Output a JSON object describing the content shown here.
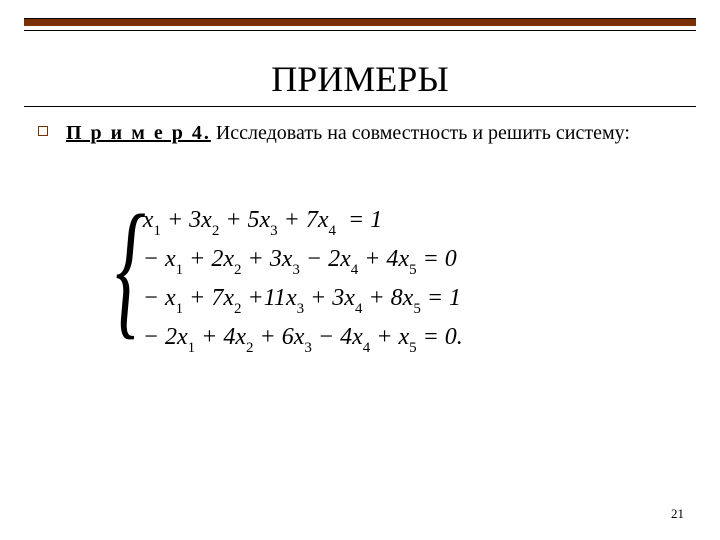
{
  "colors": {
    "accent": "#7b3000",
    "text": "#000000",
    "background": "#ffffff"
  },
  "title": "ПРИМЕРЫ",
  "example": {
    "label": "П р и м е р  4.",
    "description": "Исследовать на совместность и решить систему:"
  },
  "equations": {
    "eq1": "x₁ + 3x₂ + 5x₃ + 7x₄ = 1",
    "eq2": "− x₁ + 2x₂ + 3x₃ − 2x₄ + 4x₅ = 0",
    "eq3": "− x₁ + 7x₂ + 11x₃ + 3x₄ + 8x₅ = 1",
    "eq4": "− 2x₁ + 4x₂ + 6x₃ − 4x₄ + x₅ = 0."
  },
  "page_number": "21"
}
